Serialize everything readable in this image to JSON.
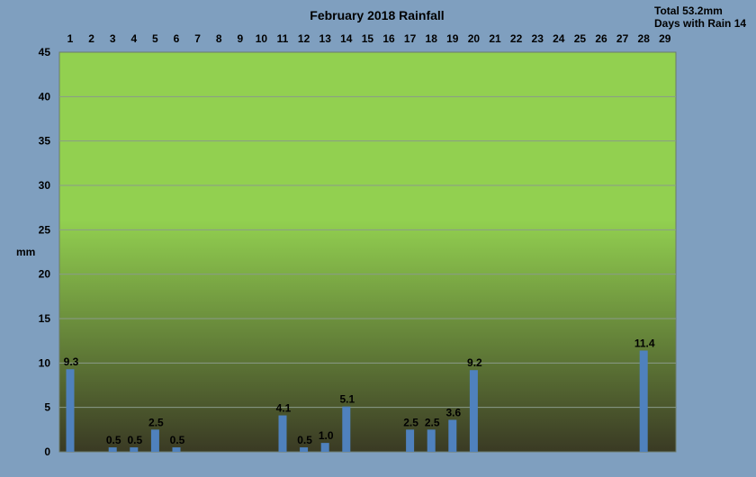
{
  "chart_data": {
    "type": "bar",
    "title": "February 2018 Rainfall",
    "summary": {
      "total": "Total 53.2mm",
      "days_with_rain": "Days with Rain 14"
    },
    "ylabel": "mm",
    "xlabel": "",
    "ylim": [
      0,
      45
    ],
    "yticks": [
      0,
      5,
      10,
      15,
      20,
      25,
      30,
      35,
      40,
      45
    ],
    "grid": true,
    "x_axis_position": "top",
    "categories": [
      "1",
      "2",
      "3",
      "4",
      "5",
      "6",
      "7",
      "8",
      "9",
      "10",
      "11",
      "12",
      "13",
      "14",
      "15",
      "16",
      "17",
      "18",
      "19",
      "20",
      "21",
      "22",
      "23",
      "24",
      "25",
      "26",
      "27",
      "28",
      "29"
    ],
    "values": [
      9.3,
      0,
      0.5,
      0.5,
      2.5,
      0.5,
      0,
      0,
      0,
      0,
      4.1,
      0.5,
      1.0,
      5.1,
      0,
      0,
      2.5,
      2.5,
      3.6,
      9.2,
      0,
      0,
      0,
      0,
      0,
      0,
      0,
      11.4,
      0
    ],
    "data_labels": [
      "9.3",
      "",
      "0.5",
      "0.5",
      "2.5",
      "0.5",
      "",
      "",
      "",
      "",
      "4.1",
      "0.5",
      "1.0",
      "5.1",
      "",
      "",
      "2.5",
      "2.5",
      "3.6",
      "9.2",
      "",
      "",
      "",
      "",
      "",
      "",
      "",
      "11.4",
      ""
    ],
    "colors": {
      "background": "#7f9fbf",
      "plot_top": "#92d050",
      "plot_bottom": "#3a3a24",
      "bar": "#4f81bd",
      "grid": "#8a9a8a"
    }
  }
}
